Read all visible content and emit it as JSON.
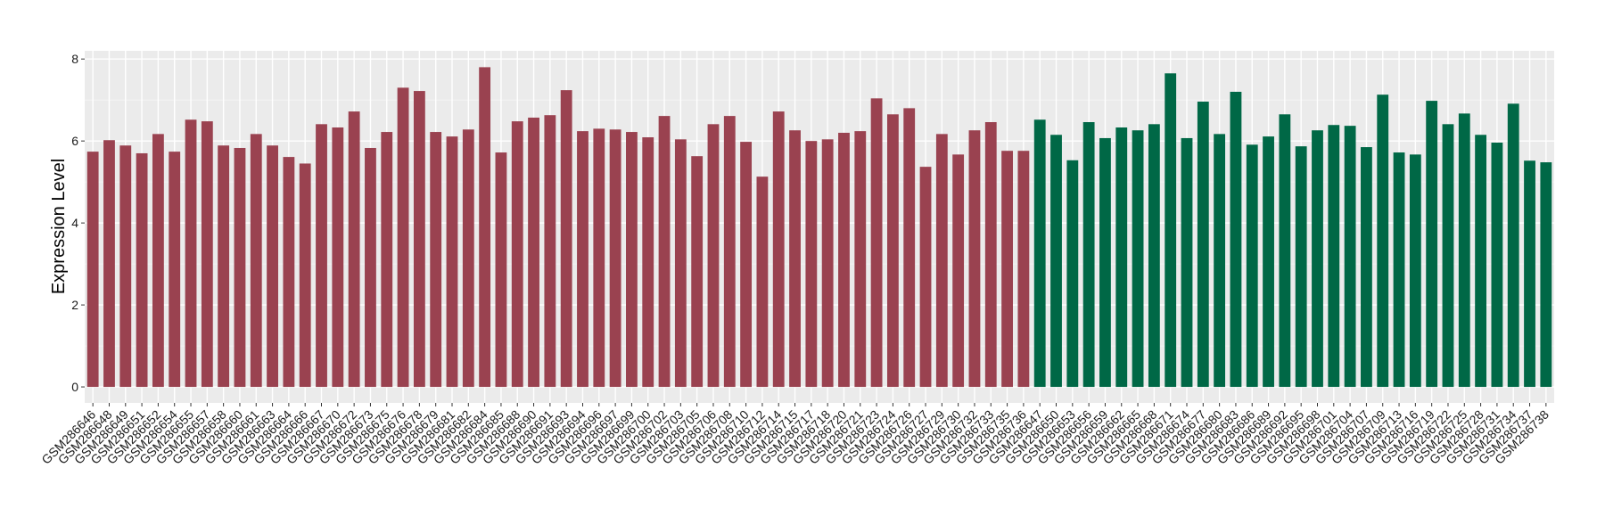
{
  "chart_data": {
    "type": "bar",
    "title": "",
    "xlabel": "",
    "ylabel": "Expression Level",
    "ylim": [
      -0.39,
      8.2
    ],
    "yticks": [
      0,
      2,
      4,
      6,
      8
    ],
    "grid": true,
    "legend": "none",
    "colors": {
      "group1": "#9A4250",
      "group2": "#006846",
      "panel": "#EBEBEB",
      "grid": "#FFFFFF"
    },
    "categories": [
      "GSM286646",
      "GSM286648",
      "GSM286649",
      "GSM286651",
      "GSM286652",
      "GSM286654",
      "GSM286655",
      "GSM286657",
      "GSM286658",
      "GSM286660",
      "GSM286661",
      "GSM286663",
      "GSM286664",
      "GSM286666",
      "GSM286667",
      "GSM286670",
      "GSM286672",
      "GSM286673",
      "GSM286675",
      "GSM286676",
      "GSM286678",
      "GSM286679",
      "GSM286681",
      "GSM286682",
      "GSM286684",
      "GSM286685",
      "GSM286688",
      "GSM286690",
      "GSM286691",
      "GSM286693",
      "GSM286694",
      "GSM286696",
      "GSM286697",
      "GSM286699",
      "GSM286700",
      "GSM286702",
      "GSM286703",
      "GSM286705",
      "GSM286706",
      "GSM286708",
      "GSM286710",
      "GSM286712",
      "GSM286714",
      "GSM286715",
      "GSM286717",
      "GSM286718",
      "GSM286720",
      "GSM286721",
      "GSM286723",
      "GSM286724",
      "GSM286726",
      "GSM286727",
      "GSM286729",
      "GSM286730",
      "GSM286732",
      "GSM286733",
      "GSM286735",
      "GSM286736",
      "GSM286647",
      "GSM286650",
      "GSM286653",
      "GSM286656",
      "GSM286659",
      "GSM286662",
      "GSM286665",
      "GSM286668",
      "GSM286671",
      "GSM286674",
      "GSM286677",
      "GSM286680",
      "GSM286683",
      "GSM286686",
      "GSM286689",
      "GSM286692",
      "GSM286695",
      "GSM286698",
      "GSM286701",
      "GSM286704",
      "GSM286707",
      "GSM286709",
      "GSM286713",
      "GSM286716",
      "GSM286719",
      "GSM286722",
      "GSM286725",
      "GSM286728",
      "GSM286731",
      "GSM286734",
      "GSM286737",
      "GSM286738"
    ],
    "values": [
      5.74,
      6.02,
      5.89,
      5.7,
      6.17,
      5.74,
      6.52,
      6.48,
      5.89,
      5.83,
      6.17,
      5.89,
      5.61,
      5.45,
      6.41,
      6.33,
      6.72,
      5.83,
      6.22,
      7.3,
      7.22,
      6.22,
      6.11,
      6.28,
      7.8,
      5.72,
      6.48,
      6.57,
      6.63,
      7.24,
      6.24,
      6.3,
      6.28,
      6.22,
      6.09,
      6.61,
      6.04,
      5.63,
      6.41,
      6.61,
      5.98,
      5.13,
      6.72,
      6.26,
      6.0,
      6.04,
      6.2,
      6.24,
      7.04,
      6.65,
      6.8,
      5.37,
      6.17,
      5.67,
      6.26,
      6.46,
      5.76,
      5.76,
      6.52,
      6.15,
      5.53,
      6.46,
      6.07,
      6.33,
      6.26,
      6.41,
      7.65,
      6.07,
      6.96,
      6.17,
      7.2,
      5.91,
      6.11,
      6.65,
      5.87,
      6.26,
      6.39,
      6.37,
      5.85,
      7.13,
      5.72,
      5.67,
      6.98,
      6.41,
      6.67,
      6.15,
      5.96,
      6.91,
      5.52,
      5.48
    ],
    "groups": [
      1,
      1,
      1,
      1,
      1,
      1,
      1,
      1,
      1,
      1,
      1,
      1,
      1,
      1,
      1,
      1,
      1,
      1,
      1,
      1,
      1,
      1,
      1,
      1,
      1,
      1,
      1,
      1,
      1,
      1,
      1,
      1,
      1,
      1,
      1,
      1,
      1,
      1,
      1,
      1,
      1,
      1,
      1,
      1,
      1,
      1,
      1,
      1,
      1,
      1,
      1,
      1,
      1,
      1,
      1,
      1,
      1,
      1,
      2,
      2,
      2,
      2,
      2,
      2,
      2,
      2,
      2,
      2,
      2,
      2,
      2,
      2,
      2,
      2,
      2,
      2,
      2,
      2,
      2,
      2,
      2,
      2,
      2,
      2,
      2,
      2,
      2,
      2,
      2,
      2
    ]
  }
}
